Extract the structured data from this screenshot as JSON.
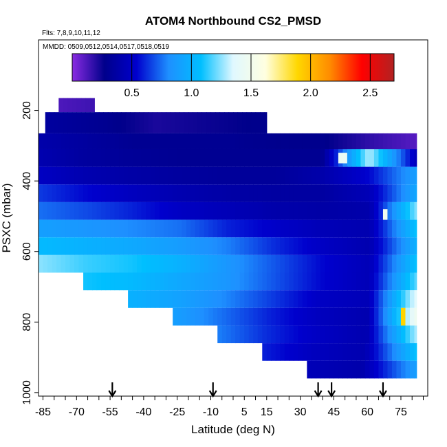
{
  "chart_data": {
    "type": "heatmap",
    "title": "ATOM4 Northbound CS2_PMSD",
    "flights_label": "Flts: 7,8,9,10,11,12",
    "dates_label": "MMDD: 0509,0512,0514,0517,0518,0519",
    "xlabel": "Latitude (deg N)",
    "ylabel": "PSXC (mbar)",
    "xlim": [
      -87,
      87
    ],
    "ylim": [
      1010,
      0
    ],
    "x_tick_labels": [
      "-85",
      "-70",
      "-55",
      "-40",
      "-25",
      "-10",
      "5",
      "15",
      "30",
      "45",
      "60",
      "75"
    ],
    "x_tick_values": [
      -85,
      -70,
      -55,
      -40,
      -25,
      -10,
      5,
      15,
      30,
      45,
      60,
      75
    ],
    "x_minor_step": 5,
    "y_tick_labels": [
      "200",
      "400",
      "600",
      "800",
      "1000"
    ],
    "y_tick_values": [
      200,
      400,
      600,
      800,
      1000
    ],
    "colorbar": {
      "range": [
        0.0,
        2.7
      ],
      "tick_labels": [
        "0.5",
        "1.0",
        "1.5",
        "2.0",
        "2.5"
      ],
      "tick_values": [
        0.5,
        1.0,
        1.5,
        2.0,
        2.5
      ],
      "colors": [
        "#8a2be2",
        "#00008b",
        "#0000cd",
        "#1e90ff",
        "#00bfff",
        "#e0f8ff",
        "#ffffe0",
        "#ffd700",
        "#ff8c00",
        "#ff0000",
        "#b22222"
      ]
    },
    "arrows_lat": [
      -54,
      -9,
      38,
      44,
      67
    ],
    "curtain_rows": [
      {
        "p_top": 165,
        "p_bot": 205,
        "lat_start": -78,
        "lat_end": -62,
        "values": [
          0.12,
          0.15
        ]
      },
      {
        "p_top": 205,
        "p_bot": 265,
        "lat_start": -84,
        "lat_end": 15,
        "values": [
          0.35,
          0.3,
          0.22,
          0.25,
          0.28
        ]
      },
      {
        "p_top": 265,
        "p_bot": 310,
        "lat_start": -87,
        "lat_end": 82,
        "values": [
          0.4,
          0.35,
          0.3,
          0.3,
          0.3,
          0.28,
          0.28,
          0.18,
          0.1
        ]
      },
      {
        "p_top": 310,
        "p_bot": 360,
        "lat_start": -87,
        "lat_end": 82,
        "values": [
          0.42,
          0.35,
          0.32,
          0.3,
          0.3,
          0.3,
          0.3,
          1.3,
          0.45
        ]
      },
      {
        "p_top": 360,
        "p_bot": 410,
        "lat_start": -87,
        "lat_end": 82,
        "values": [
          0.5,
          0.42,
          0.38,
          0.35,
          0.33,
          0.33,
          0.4,
          0.55,
          0.9
        ]
      },
      {
        "p_top": 410,
        "p_bot": 460,
        "lat_start": -87,
        "lat_end": 82,
        "values": [
          0.65,
          0.55,
          0.48,
          0.42,
          0.38,
          0.36,
          0.36,
          0.45,
          0.95
        ]
      },
      {
        "p_top": 460,
        "p_bot": 510,
        "lat_start": -87,
        "lat_end": 82,
        "values": [
          0.75,
          0.68,
          0.6,
          0.5,
          0.45,
          0.4,
          0.38,
          0.4,
          1.25
        ]
      },
      {
        "p_top": 510,
        "p_bot": 560,
        "lat_start": -87,
        "lat_end": 82,
        "values": [
          0.9,
          0.85,
          0.8,
          0.75,
          0.6,
          0.52,
          0.45,
          0.42,
          1.1
        ]
      },
      {
        "p_top": 560,
        "p_bot": 610,
        "lat_start": -87,
        "lat_end": 82,
        "values": [
          1.05,
          1.0,
          0.95,
          0.88,
          0.78,
          0.62,
          0.5,
          0.42,
          1.0
        ]
      },
      {
        "p_top": 610,
        "p_bot": 660,
        "lat_start": -87,
        "lat_end": 82,
        "values": [
          1.25,
          1.15,
          1.1,
          1.0,
          0.85,
          0.7,
          0.55,
          0.45,
          1.1
        ]
      },
      {
        "p_top": 660,
        "p_bot": 710,
        "lat_start": -67,
        "lat_end": 82,
        "values": [
          1.1,
          1.05,
          0.95,
          0.85,
          0.7,
          0.55,
          0.45,
          1.2
        ]
      },
      {
        "p_top": 710,
        "p_bot": 760,
        "lat_start": -47,
        "lat_end": 82,
        "values": [
          1.0,
          0.92,
          0.8,
          0.65,
          0.5,
          0.45,
          1.4
        ]
      },
      {
        "p_top": 760,
        "p_bot": 810,
        "lat_start": -27,
        "lat_end": 82,
        "values": [
          0.9,
          0.75,
          0.6,
          0.48,
          0.42,
          1.5
        ]
      },
      {
        "p_top": 810,
        "p_bot": 860,
        "lat_start": -7,
        "lat_end": 82,
        "values": [
          0.78,
          0.62,
          0.5,
          0.42,
          1.3
        ]
      },
      {
        "p_top": 860,
        "p_bot": 910,
        "lat_start": 13,
        "lat_end": 82,
        "values": [
          0.6,
          0.48,
          0.42,
          1.1
        ]
      },
      {
        "p_top": 910,
        "p_bot": 960,
        "lat_start": 33,
        "lat_end": 82,
        "values": [
          0.45,
          0.4,
          0.9
        ]
      }
    ],
    "highlights": [
      {
        "lat_start": 75,
        "lat_end": 77,
        "p_top": 760,
        "p_bot": 810,
        "value": 1.9
      },
      {
        "lat_start": 47,
        "lat_end": 51,
        "p_top": 320,
        "p_bot": 350,
        "value": 1.45
      },
      {
        "lat_start": 67,
        "lat_end": 69,
        "p_top": 480,
        "p_bot": 510,
        "value": 1.5
      }
    ],
    "grid": false
  }
}
